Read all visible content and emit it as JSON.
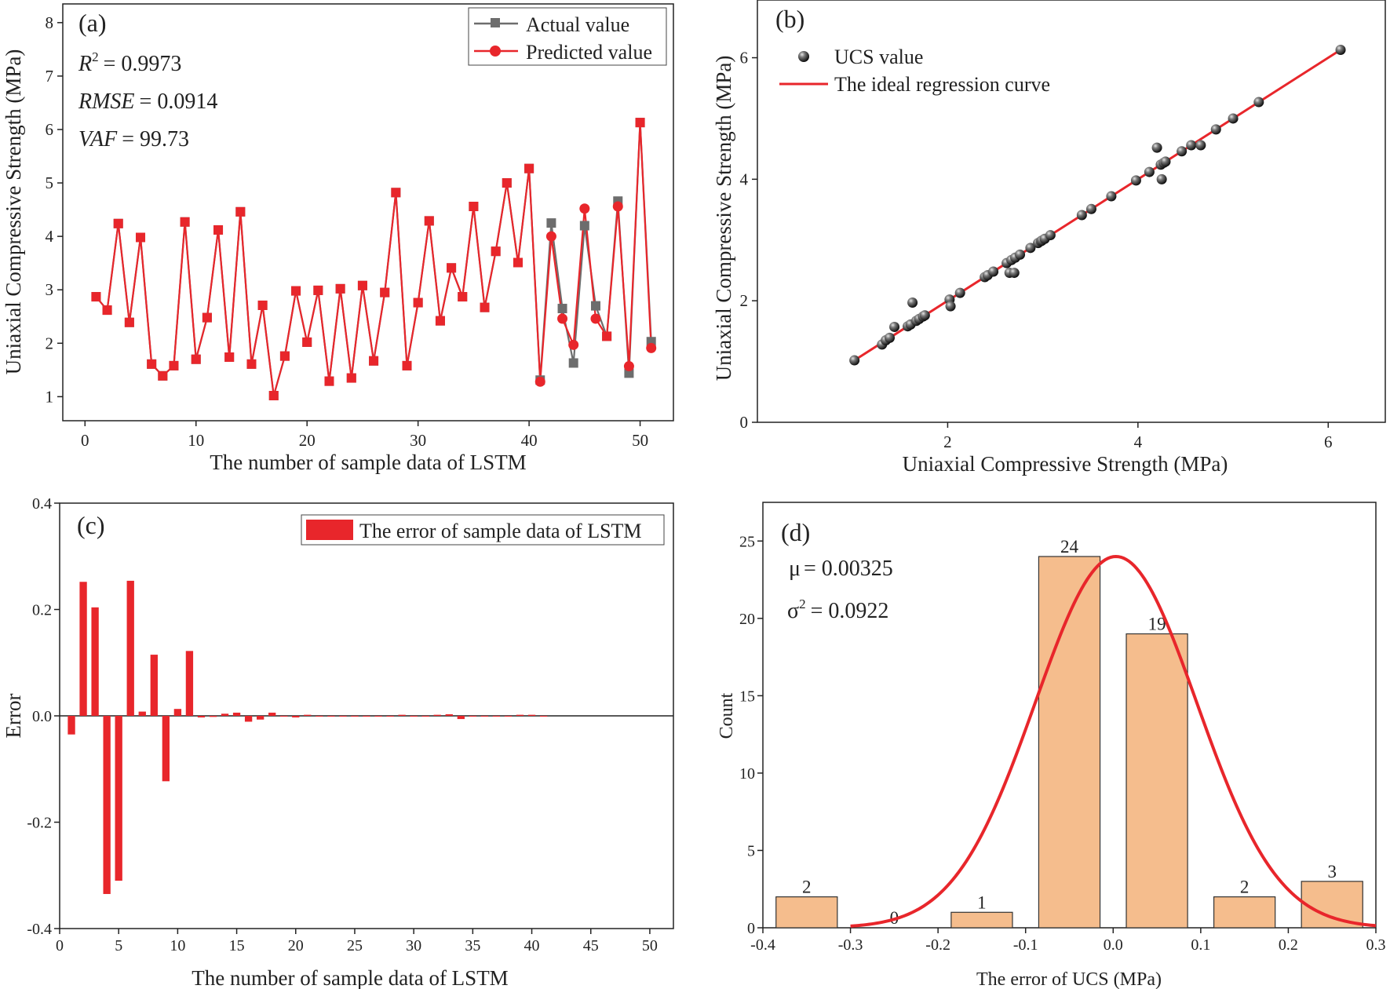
{
  "colors": {
    "red": "#e8262b",
    "gray": "#6d6d6d",
    "bar": "#f5bd8d",
    "bar_edge": "#333333"
  },
  "chart_data": [
    {
      "id": "a",
      "type": "line",
      "panel_label": "(a)",
      "xlabel": "The number of sample data of LSTM",
      "ylabel": "Uniaxial Compressive Strength (MPa)",
      "xlim": [
        -2,
        53
      ],
      "ylim": [
        0.55,
        8.35
      ],
      "xticks": [
        "0",
        "10",
        "20",
        "30",
        "40",
        "50"
      ],
      "yticks": [
        "1",
        "2",
        "3",
        "4",
        "5",
        "6",
        "7",
        "8"
      ],
      "stats": {
        "r2_label": "R",
        "r2_value": "= 0.9973",
        "rmse_label": "RMSE",
        "rmse_value": "= 0.0914",
        "vaf_label": "VAF",
        "vaf_value": "= 99.73"
      },
      "series": [
        {
          "name": "Actual value",
          "values": [
            2.87,
            2.62,
            4.24,
            2.39,
            3.98,
            1.61,
            1.39,
            1.58,
            4.27,
            1.7,
            2.48,
            4.12,
            1.74,
            4.46,
            1.61,
            2.71,
            1.02,
            1.76,
            2.98,
            2.02,
            2.99,
            1.29,
            3.02,
            1.35,
            3.08,
            1.67,
            2.95,
            4.82,
            1.58,
            2.76,
            4.29,
            2.42,
            3.41,
            2.87,
            4.56,
            2.67,
            3.72,
            5.0,
            3.51,
            5.27,
            1.31,
            4.25,
            2.65,
            1.63,
            4.2,
            2.7,
            2.13,
            4.66,
            1.44,
            6.13,
            2.03
          ]
        },
        {
          "name": "Predicted value",
          "values": [
            2.87,
            2.62,
            4.24,
            2.39,
            3.98,
            1.61,
            1.39,
            1.58,
            4.27,
            1.7,
            2.48,
            4.12,
            1.74,
            4.46,
            1.61,
            2.71,
            1.02,
            1.76,
            2.98,
            2.02,
            2.99,
            1.29,
            3.02,
            1.35,
            3.08,
            1.67,
            2.95,
            4.82,
            1.58,
            2.76,
            4.29,
            2.42,
            3.41,
            2.87,
            4.56,
            2.67,
            3.72,
            5.0,
            3.51,
            5.27,
            1.28,
            4.0,
            2.46,
            1.97,
            4.52,
            2.46,
            2.13,
            4.56,
            1.57,
            6.13,
            1.91
          ]
        }
      ]
    },
    {
      "id": "b",
      "type": "scatter",
      "panel_label": "(b)",
      "xlabel": "Uniaxial Compressive Strength (MPa)",
      "ylabel": "Uniaxial Compressive Strength (MPa)",
      "xlim": [
        0,
        6.6
      ],
      "ylim": [
        0,
        6.95
      ],
      "xticks": [
        "2",
        "4",
        "6"
      ],
      "yticks": [
        "0",
        "2",
        "4",
        "6"
      ],
      "legend": [
        "UCS value",
        "The ideal regression curve"
      ],
      "line": [
        [
          1.02,
          1.02
        ],
        [
          6.13,
          6.13
        ]
      ],
      "points": [
        [
          1.02,
          1.02
        ],
        [
          1.31,
          1.28
        ],
        [
          1.35,
          1.35
        ],
        [
          1.39,
          1.39
        ],
        [
          1.44,
          1.57
        ],
        [
          1.58,
          1.58
        ],
        [
          1.61,
          1.61
        ],
        [
          1.63,
          1.97
        ],
        [
          1.67,
          1.67
        ],
        [
          1.7,
          1.7
        ],
        [
          1.74,
          1.74
        ],
        [
          1.76,
          1.76
        ],
        [
          2.02,
          2.02
        ],
        [
          2.03,
          1.91
        ],
        [
          2.13,
          2.13
        ],
        [
          2.39,
          2.39
        ],
        [
          2.42,
          2.42
        ],
        [
          2.48,
          2.48
        ],
        [
          2.62,
          2.62
        ],
        [
          2.65,
          2.46
        ],
        [
          2.67,
          2.67
        ],
        [
          2.7,
          2.46
        ],
        [
          2.71,
          2.71
        ],
        [
          2.76,
          2.76
        ],
        [
          2.87,
          2.87
        ],
        [
          2.95,
          2.95
        ],
        [
          2.98,
          2.98
        ],
        [
          2.99,
          2.99
        ],
        [
          3.02,
          3.02
        ],
        [
          3.08,
          3.08
        ],
        [
          3.41,
          3.41
        ],
        [
          3.51,
          3.51
        ],
        [
          3.72,
          3.72
        ],
        [
          3.98,
          3.98
        ],
        [
          4.12,
          4.12
        ],
        [
          4.2,
          4.52
        ],
        [
          4.24,
          4.24
        ],
        [
          4.25,
          4.0
        ],
        [
          4.27,
          4.27
        ],
        [
          4.29,
          4.29
        ],
        [
          4.46,
          4.46
        ],
        [
          4.56,
          4.56
        ],
        [
          4.66,
          4.56
        ],
        [
          4.82,
          4.82
        ],
        [
          5.0,
          5.0
        ],
        [
          5.27,
          5.27
        ],
        [
          6.13,
          6.13
        ]
      ]
    },
    {
      "id": "c",
      "type": "bar",
      "panel_label": "(c)",
      "xlabel": "The number of sample data of LSTM",
      "ylabel": "Error",
      "xlim": [
        0,
        52
      ],
      "ylim": [
        -0.4,
        0.4
      ],
      "xticks": [
        "0",
        "5",
        "10",
        "15",
        "20",
        "25",
        "30",
        "35",
        "40",
        "45",
        "50"
      ],
      "yticks": [
        "-0.4",
        "-0.2",
        "0.0",
        "0.2",
        "0.4"
      ],
      "legend": "The error of sample data of LSTM",
      "values": [
        -0.035,
        0.252,
        0.204,
        -0.335,
        -0.31,
        0.254,
        0.008,
        0.115,
        -0.123,
        0.013,
        0.122,
        -0.003,
        -0.002,
        0.004,
        0.006,
        -0.011,
        -0.007,
        0.006,
        0.0,
        -0.003,
        0.002,
        0.0,
        0.0,
        -0.001,
        0.0,
        0.0,
        0.0,
        0.0,
        0.002,
        -0.001,
        -0.001,
        0.002,
        0.003,
        -0.006,
        0.0,
        0.0,
        0.0,
        -0.001,
        0.002,
        0.002,
        0.0
      ]
    },
    {
      "id": "d",
      "type": "histogram",
      "panel_label": "(d)",
      "xlabel": "The error of UCS (MPa)",
      "ylabel": "Count",
      "xlim": [
        -0.4,
        0.3
      ],
      "ylim": [
        0,
        27.5
      ],
      "xticks": [
        "-0.4",
        "-0.3",
        "-0.2",
        "-0.1",
        "0.0",
        "0.1",
        "0.2",
        "0.3"
      ],
      "yticks": [
        "0",
        "5",
        "10",
        "15",
        "20",
        "25"
      ],
      "stats": {
        "mu_label": "μ",
        "mu_value": "= 0.00325",
        "sigma_label": "σ",
        "sigma_value": "= 0.0922"
      },
      "bins": [
        {
          "center": -0.35,
          "count": 2,
          "label": "2"
        },
        {
          "center": -0.25,
          "count": 0,
          "label": "0"
        },
        {
          "center": -0.15,
          "count": 1,
          "label": "1"
        },
        {
          "center": -0.05,
          "count": 24,
          "label": "24"
        },
        {
          "center": 0.05,
          "count": 19,
          "label": "19"
        },
        {
          "center": 0.15,
          "count": 2,
          "label": "2"
        },
        {
          "center": 0.25,
          "count": 3,
          "label": "3"
        }
      ],
      "bin_width": 0.07,
      "curve": {
        "mean": 0.00325,
        "sigma": 0.0922,
        "peak": 24,
        "xmin": -0.3,
        "xmax": 0.3
      }
    }
  ]
}
